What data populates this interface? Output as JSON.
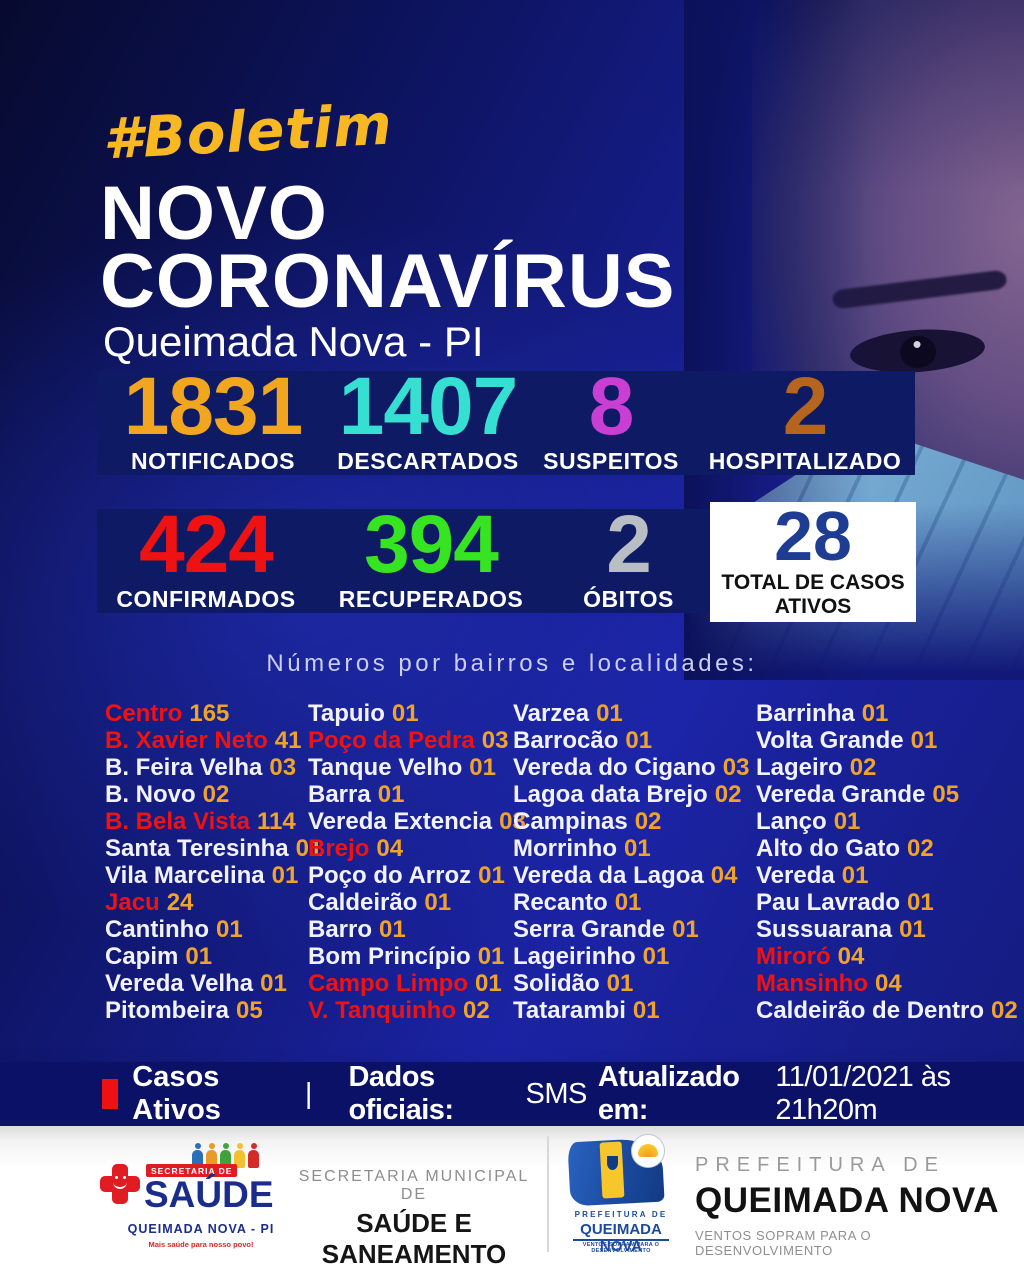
{
  "header": {
    "hashtag": "#Boletim",
    "title_line1": "NOVO",
    "title_line2": "CORONAVÍRUS",
    "subtitle": "Queimada Nova - PI"
  },
  "stats_row1": [
    {
      "value": "1831",
      "label": "NOTIFICADOS",
      "color": "#f2a51f"
    },
    {
      "value": "1407",
      "label": "DESCARTADOS",
      "color": "#35dfd2"
    },
    {
      "value": "8",
      "label": "SUSPEITOS",
      "color": "#c93fd4"
    },
    {
      "value": "2",
      "label": "HOSPITALIZADO",
      "color": "#b5651d"
    }
  ],
  "stats_row2": [
    {
      "value": "424",
      "label": "CONFIRMADOS",
      "color": "#ee1212"
    },
    {
      "value": "394",
      "label": "RECUPERADOS",
      "color": "#37e422"
    },
    {
      "value": "2",
      "label": "ÓBITOS",
      "color": "#b9bec4"
    }
  ],
  "total_box": {
    "value": "28",
    "value_color": "#1e3d92",
    "label_line1": "TOTAL DE CASOS",
    "label_line2": "ATIVOS"
  },
  "section_heading": "Números por bairros e localidades:",
  "localities": {
    "columns": [
      [
        {
          "name": "Centro",
          "value": "165",
          "red": true
        },
        {
          "name": "B. Xavier Neto",
          "value": "41",
          "red": true
        },
        {
          "name": "B. Feira Velha",
          "value": "03",
          "red": false
        },
        {
          "name": "B. Novo",
          "value": "02",
          "red": false
        },
        {
          "name": "B. Bela Vista",
          "value": "114",
          "red": true
        },
        {
          "name": "Santa Teresinha",
          "value": "01",
          "red": false
        },
        {
          "name": "Vila Marcelina",
          "value": "01",
          "red": false
        },
        {
          "name": "Jacu",
          "value": "24",
          "red": true
        },
        {
          "name": "Cantinho",
          "value": "01",
          "red": false
        },
        {
          "name": "Capim",
          "value": "01",
          "red": false
        },
        {
          "name": "Vereda Velha",
          "value": "01",
          "red": false
        },
        {
          "name": "Pitombeira",
          "value": "05",
          "red": false
        }
      ],
      [
        {
          "name": "Tapuio",
          "value": "01",
          "red": false
        },
        {
          "name": "Poço da Pedra",
          "value": "03",
          "red": true
        },
        {
          "name": "Tanque Velho",
          "value": "01",
          "red": false
        },
        {
          "name": "Barra",
          "value": "01",
          "red": false
        },
        {
          "name": "Vereda Extencia",
          "value": "03",
          "red": false
        },
        {
          "name": "Brejo",
          "value": "04",
          "red": true
        },
        {
          "name": "Poço do Arroz",
          "value": "01",
          "red": false
        },
        {
          "name": "Caldeirão",
          "value": "01",
          "red": false
        },
        {
          "name": "Barro",
          "value": "01",
          "red": false
        },
        {
          "name": "Bom Princípio",
          "value": "01",
          "red": false
        },
        {
          "name": "Campo Limpo",
          "value": "01",
          "red": true
        },
        {
          "name": "V. Tanquinho",
          "value": "02",
          "red": true
        }
      ],
      [
        {
          "name": "Varzea",
          "value": "01",
          "red": false
        },
        {
          "name": "Barrocão",
          "value": "01",
          "red": false
        },
        {
          "name": "Vereda do Cigano",
          "value": "03",
          "red": false
        },
        {
          "name": "Lagoa data Brejo",
          "value": "02",
          "red": false
        },
        {
          "name": "Campinas",
          "value": "02",
          "red": false
        },
        {
          "name": "Morrinho",
          "value": "01",
          "red": false
        },
        {
          "name": "Vereda da Lagoa",
          "value": "04",
          "red": false
        },
        {
          "name": "Recanto",
          "value": "01",
          "red": false
        },
        {
          "name": "Serra Grande",
          "value": "01",
          "red": false
        },
        {
          "name": "Lageirinho",
          "value": "01",
          "red": false
        },
        {
          "name": "Solidão",
          "value": "01",
          "red": false
        },
        {
          "name": "Tatarambi",
          "value": "01",
          "red": false
        }
      ],
      [
        {
          "name": "Barrinha",
          "value": "01",
          "red": false
        },
        {
          "name": "Volta Grande",
          "value": "01",
          "red": false
        },
        {
          "name": "Lageiro",
          "value": "02",
          "red": false
        },
        {
          "name": "Vereda Grande",
          "value": "05",
          "red": false
        },
        {
          "name": "Lanço",
          "value": "01",
          "red": false
        },
        {
          "name": "Alto do Gato",
          "value": "02",
          "red": false
        },
        {
          "name": "Vereda",
          "value": "01",
          "red": false
        },
        {
          "name": "Pau Lavrado",
          "value": "01",
          "red": false
        },
        {
          "name": "Sussuarana",
          "value": "01",
          "red": false
        },
        {
          "name": "Miroró",
          "value": "04",
          "red": true
        },
        {
          "name": "Mansinho",
          "value": "04",
          "red": true
        },
        {
          "name": "Caldeirão de Dentro",
          "value": "02",
          "red": false
        }
      ]
    ]
  },
  "footer_bar": {
    "legend_label": "Casos Ativos",
    "separator": "|",
    "segments": [
      {
        "text": "Dados oficiais:",
        "bold": true
      },
      {
        "text": "SMS",
        "bold": false
      },
      {
        "text": "Atualizado em:",
        "bold": true
      },
      {
        "text": "11/01/2021 às 21h20m",
        "bold": false
      }
    ]
  },
  "logos": {
    "saude": {
      "banner": "SECRETARIA DE",
      "name": "SAÚDE",
      "city": "QUEIMADA NOVA - PI",
      "tagline": "Mais saúde para nosso povo!"
    },
    "sms": {
      "line1": "SECRETARIA MUNICIPAL DE",
      "line2": "SAÚDE E SANEAMENTO"
    },
    "pref_flag": {
      "line1": "PREFEITURA DE",
      "line2": "QUEIMADA NOVA",
      "tagline": "VENTOS SOPRAM PARA O DESENVOLVIMENTO"
    },
    "pref_text": {
      "line1": "PREFEITURA DE",
      "line2": "QUEIMADA NOVA",
      "tagline": "VENTOS SOPRAM PARA O DESENVOLVIMENTO"
    }
  },
  "colors": {
    "highlight_red": "#ee1212",
    "count_orange": "#f0a32a",
    "name_white": "#f2f2ff",
    "panel_navy": "#0e1a63",
    "footer_navy": "#0a1166",
    "accent_yellow": "#f7b821"
  }
}
